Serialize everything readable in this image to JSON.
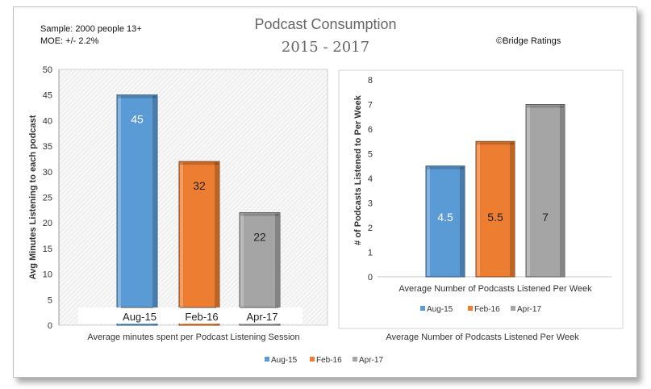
{
  "header": {
    "title": "Podcast Consumption",
    "subtitle": "2015 - 2017",
    "sample": "Sample: 2000 people 13+",
    "moe": "MOE: +/- 2.2%",
    "credit": "©Bridge Ratings"
  },
  "colors": {
    "Aug-15": "#5b9bd5",
    "Feb-16": "#ed7d31",
    "Apr-17": "#a5a5a5"
  },
  "legend": [
    "Aug-15",
    "Feb-16",
    "Apr-17"
  ],
  "chart_data": [
    {
      "type": "bar",
      "categories": [
        "Aug-15",
        "Feb-16",
        "Apr-17"
      ],
      "values": [
        45,
        32,
        22
      ],
      "data_labels": [
        "45",
        "32",
        "22"
      ],
      "ylabel": "Avg Minutes Listening to each podcast",
      "xlabel": "Average minutes spent per Podcast Listening Session",
      "ylim": [
        0,
        50
      ],
      "yticks": [
        0,
        5,
        10,
        15,
        20,
        25,
        30,
        35,
        40,
        45,
        50
      ],
      "grid": false
    },
    {
      "type": "bar",
      "categories": [
        "Aug-15",
        "Feb-16",
        "Apr-17"
      ],
      "values": [
        4.5,
        5.5,
        7
      ],
      "data_labels": [
        "4.5",
        "5.5",
        "7"
      ],
      "ylabel": "# of Podcasts Listened to Per Week",
      "xlabel": "Average Number of Podcasts Listened Per Week",
      "inner_xlabel": "Average Number of Podcasts Listened Per Week",
      "ylim": [
        0,
        8
      ],
      "yticks": [
        0,
        1,
        2,
        3,
        4,
        5,
        6,
        7,
        8
      ],
      "grid": false
    }
  ]
}
